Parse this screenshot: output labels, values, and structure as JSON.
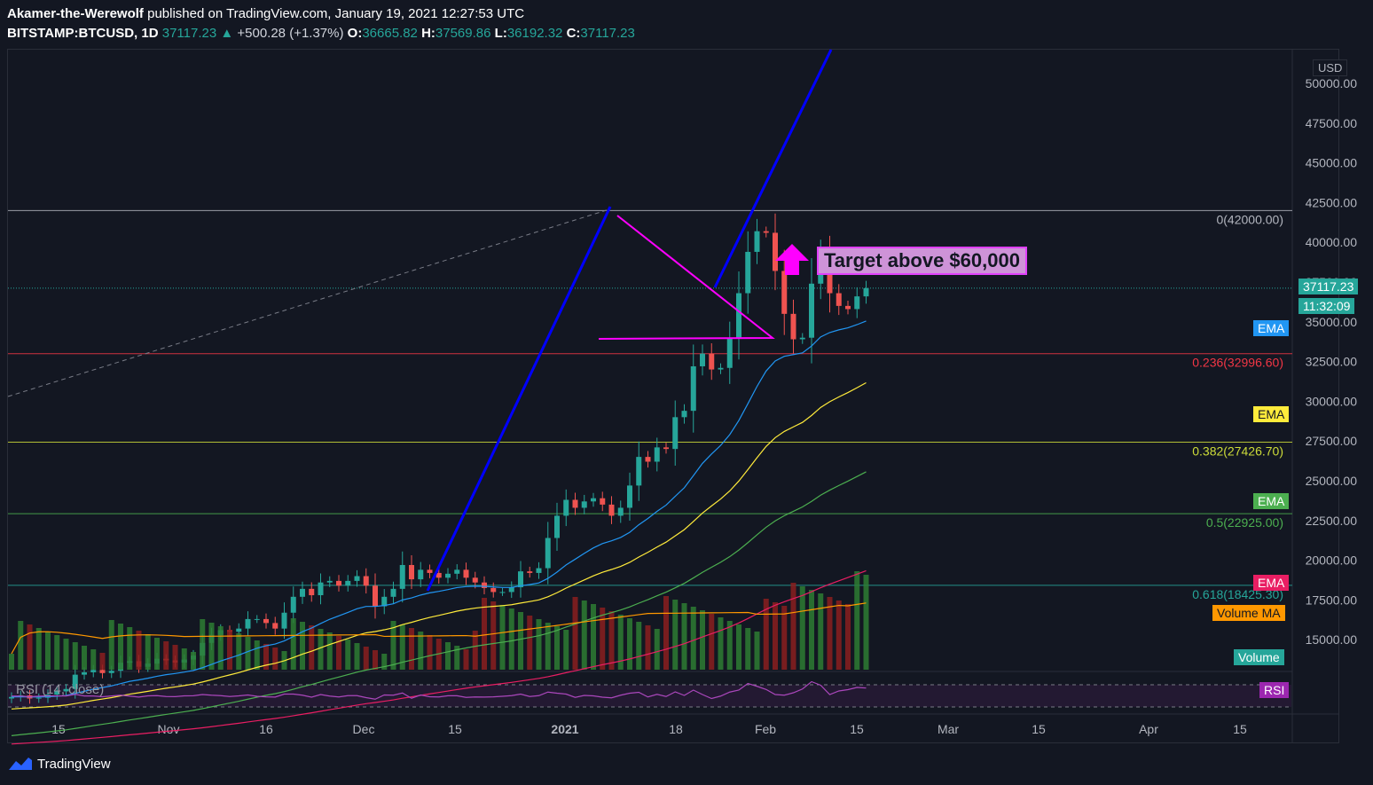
{
  "header": {
    "author": "Akamer-the-Werewolf",
    "published": "published on TradingView.com, January 19, 2021 12:27:53 UTC",
    "symbol": "BITSTAMP:BTCUSD, 1D",
    "last": "37117.23",
    "change": "+500.28 (+1.37%)",
    "o_label": "O:",
    "o": "36665.82",
    "h_label": "H:",
    "h": "37569.86",
    "l_label": "L:",
    "l": "36192.32",
    "c_label": "C:",
    "c": "37117.23"
  },
  "annotation": {
    "target_text": "Target above $60,000"
  },
  "footer": {
    "brand": "TradingView"
  },
  "rsi_label": "RSI (14, close)",
  "price_axis": {
    "currency": "USD",
    "ticks": [
      "50000.00",
      "47500.00",
      "45000.00",
      "42500.00",
      "40000.00",
      "37500.00",
      "35000.00",
      "32500.00",
      "30000.00",
      "27500.00",
      "25000.00",
      "22500.00",
      "20000.00",
      "17500.00",
      "15000.00"
    ],
    "last_price_tag": "37117.23",
    "countdown_tag": "11:32:09"
  },
  "time_axis": {
    "ticks": [
      "15",
      "Nov",
      "16",
      "Dec",
      "15",
      "2021",
      "18",
      "Feb",
      "15",
      "Mar",
      "15",
      "Apr",
      "15"
    ]
  },
  "indicator_tags": {
    "ema_blue": "EMA",
    "ema_yellow": "EMA",
    "ema_green": "EMA",
    "ema_red": "EMA",
    "volume_ma": "Volume MA",
    "volume": "Volume",
    "rsi": "RSI"
  },
  "fib_levels": [
    {
      "label": "0(42000.00)",
      "value": 42000,
      "color": "#b2b5be"
    },
    {
      "label": "0.236(32996.60)",
      "value": 32996.6,
      "color": "#f23645"
    },
    {
      "label": "0.382(27426.70)",
      "value": 27426.7,
      "color": "#cddc39"
    },
    {
      "label": "0.5(22925.00)",
      "value": 22925,
      "color": "#4caf50"
    },
    {
      "label": "0.618(18425.30)",
      "value": 18425.3,
      "color": "#26a69a"
    }
  ],
  "colors": {
    "up": "#26a69a",
    "down": "#ef5350",
    "ema_blue": "#2196f3",
    "ema_yellow": "#ffeb3b",
    "ema_green": "#4caf50",
    "ema_red": "#e91e63",
    "volume_ma": "#ff9800",
    "trend": "#0000ff",
    "triangle": "#ff00ff"
  },
  "chart_data": {
    "type": "candlestick",
    "symbol": "BITSTAMP:BTCUSD",
    "interval": "1D",
    "ylim": [
      12000,
      52000
    ],
    "candles_close": [
      11400,
      11500,
      11300,
      11350,
      11550,
      11750,
      11900,
      12800,
      12950,
      13100,
      12900,
      13050,
      13550,
      13650,
      13300,
      13500,
      13800,
      13700,
      13560,
      13750,
      14000,
      14800,
      15300,
      15600,
      15500,
      15700,
      16300,
      16300,
      16050,
      15700,
      16700,
      17700,
      18200,
      17800,
      18600,
      18700,
      18400,
      18700,
      19000,
      18400,
      17100,
      17700,
      18200,
      19700,
      18800,
      19400,
      19200,
      18900,
      19150,
      19400,
      18900,
      18600,
      18250,
      18000,
      18000,
      18300,
      19300,
      19200,
      19500,
      21400,
      22800,
      23800,
      23300,
      23700,
      23900,
      23500,
      22800,
      23300,
      24700,
      26500,
      26200,
      27100,
      27000,
      29000,
      29400,
      32200,
      33000,
      32000,
      32100,
      34000,
      36800,
      39400,
      40700,
      40600,
      38200,
      35500,
      33900,
      34000,
      37400,
      39200,
      36800,
      36000,
      35800,
      36600,
      37117
    ]
  },
  "drawings": {
    "trend_up_start": {
      "date": "2020-12-11",
      "price": 18000
    },
    "trend_up_peak": {
      "date": "2021-01-08",
      "price": 42000
    },
    "projection_end_price": 60000,
    "triangle": {
      "apex_price": 34000,
      "top_start_price": 41700,
      "base_price": 33900
    }
  }
}
